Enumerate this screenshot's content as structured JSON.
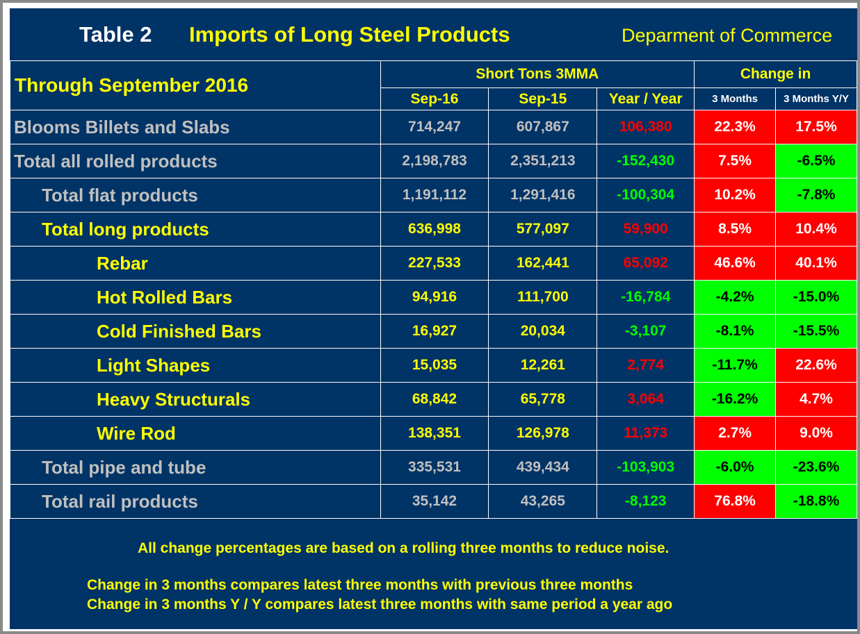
{
  "header": {
    "table_label": "Table 2",
    "title": "Imports of Long Steel Products",
    "source": "Deparment of Commerce"
  },
  "colors": {
    "background": "#003366",
    "title_yellow": "#ffff00",
    "increase": "#ff0000",
    "decrease": "#00ff00"
  },
  "chart_data": {
    "type": "table",
    "period_label": "Through September 2016",
    "group_headers": {
      "tons": "Short Tons 3MMA",
      "change": "Change in"
    },
    "columns": [
      "Sep-16",
      "Sep-15",
      "Year / Year",
      "3 Months",
      "3 Months Y/Y"
    ],
    "rows": [
      {
        "name": "Blooms Billets and Slabs",
        "sep16": "714,247",
        "sep15": "607,867",
        "yoy": "106,380",
        "m3": "22.3%",
        "m3yy": "17.5%"
      },
      {
        "name": "Total all rolled products",
        "sep16": "2,198,783",
        "sep15": "2,351,213",
        "yoy": "-152,430",
        "m3": "7.5%",
        "m3yy": "-6.5%"
      },
      {
        "name": "Total flat products",
        "sep16": "1,191,112",
        "sep15": "1,291,416",
        "yoy": "-100,304",
        "m3": "10.2%",
        "m3yy": "-7.8%"
      },
      {
        "name": "Total long products",
        "sep16": "636,998",
        "sep15": "577,097",
        "yoy": "59,900",
        "m3": "8.5%",
        "m3yy": "10.4%"
      },
      {
        "name": "Rebar",
        "sep16": "227,533",
        "sep15": "162,441",
        "yoy": "65,092",
        "m3": "46.6%",
        "m3yy": "40.1%"
      },
      {
        "name": "Hot Rolled Bars",
        "sep16": "94,916",
        "sep15": "111,700",
        "yoy": "-16,784",
        "m3": "-4.2%",
        "m3yy": "-15.0%"
      },
      {
        "name": "Cold Finished Bars",
        "sep16": "16,927",
        "sep15": "20,034",
        "yoy": "-3,107",
        "m3": "-8.1%",
        "m3yy": "-15.5%"
      },
      {
        "name": "Light Shapes",
        "sep16": "15,035",
        "sep15": "12,261",
        "yoy": "2,774",
        "m3": "-11.7%",
        "m3yy": "22.6%"
      },
      {
        "name": "Heavy Structurals",
        "sep16": "68,842",
        "sep15": "65,778",
        "yoy": "3,064",
        "m3": "-16.2%",
        "m3yy": "4.7%"
      },
      {
        "name": "Wire Rod",
        "sep16": "138,351",
        "sep15": "126,978",
        "yoy": "11,373",
        "m3": "2.7%",
        "m3yy": "9.0%"
      },
      {
        "name": "Total pipe and tube",
        "sep16": "335,531",
        "sep15": "439,434",
        "yoy": "-103,903",
        "m3": "-6.0%",
        "m3yy": "-23.6%"
      },
      {
        "name": "Total rail products",
        "sep16": "35,142",
        "sep15": "43,265",
        "yoy": "-8,123",
        "m3": "76.8%",
        "m3yy": "-18.8%"
      }
    ]
  },
  "notes": {
    "line1": "All change percentages are based on a rolling three months to reduce noise.",
    "line2": "Change in 3 months compares latest three months with previous three months",
    "line3": "Change in 3 months  Y / Y compares latest three months with same period a year ago"
  }
}
